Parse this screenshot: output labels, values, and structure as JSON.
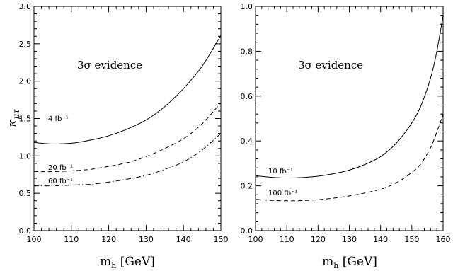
{
  "chart_data": [
    {
      "type": "line",
      "xlabel": "m",
      "xlabel_sub": "h",
      "xlabel_unit": "[GeV]",
      "ylabel": "κ",
      "ylabel_sub": "μτ",
      "xlim": [
        100,
        150
      ],
      "ylim": [
        0,
        3
      ],
      "xticks": [
        100,
        110,
        120,
        130,
        140,
        150
      ],
      "yticks": [
        0.0,
        0.5,
        1.0,
        1.5,
        2.0,
        2.5,
        3.0
      ],
      "ytick_labels": [
        "0.0",
        "0.5",
        "1.0",
        "1.5",
        "2.0",
        "2.5",
        "3.0"
      ],
      "annotation": "3σ evidence",
      "series": [
        {
          "name": "4 fb⁻¹",
          "style": "solid",
          "x": [
            100,
            105,
            110,
            115,
            120,
            125,
            130,
            135,
            140,
            145,
            150
          ],
          "y": [
            1.18,
            1.16,
            1.17,
            1.21,
            1.27,
            1.36,
            1.48,
            1.66,
            1.9,
            2.2,
            2.61
          ]
        },
        {
          "name": "20 fb⁻¹",
          "style": "dashed",
          "x": [
            100,
            105,
            110,
            115,
            120,
            125,
            130,
            135,
            140,
            145,
            150
          ],
          "y": [
            0.79,
            0.79,
            0.8,
            0.82,
            0.86,
            0.91,
            0.99,
            1.1,
            1.23,
            1.43,
            1.71
          ]
        },
        {
          "name": "60 fb⁻¹",
          "style": "dashdot",
          "x": [
            100,
            105,
            110,
            115,
            120,
            125,
            130,
            135,
            140,
            145,
            150
          ],
          "y": [
            0.6,
            0.6,
            0.61,
            0.62,
            0.65,
            0.69,
            0.74,
            0.82,
            0.92,
            1.08,
            1.3
          ]
        }
      ]
    },
    {
      "type": "line",
      "xlabel": "m",
      "xlabel_sub": "h",
      "xlabel_unit": "[GeV]",
      "xlim": [
        100,
        160
      ],
      "ylim": [
        0,
        1
      ],
      "xticks": [
        100,
        110,
        120,
        130,
        140,
        150,
        160
      ],
      "yticks": [
        0.0,
        0.2,
        0.4,
        0.6,
        0.8,
        1.0
      ],
      "ytick_labels": [
        "0.0",
        "0.2",
        "0.4",
        "0.6",
        "0.8",
        "1.0"
      ],
      "annotation": "3σ evidence",
      "series": [
        {
          "name": "10 fb⁻¹",
          "style": "solid",
          "x": [
            100,
            105,
            110,
            115,
            120,
            125,
            130,
            135,
            140,
            145,
            150,
            153,
            156,
            158,
            160
          ],
          "y": [
            0.245,
            0.238,
            0.235,
            0.237,
            0.243,
            0.254,
            0.27,
            0.295,
            0.33,
            0.39,
            0.48,
            0.56,
            0.68,
            0.8,
            0.96
          ]
        },
        {
          "name": "100 fb⁻¹",
          "style": "dashed",
          "x": [
            100,
            105,
            110,
            115,
            120,
            125,
            130,
            135,
            140,
            145,
            150,
            153,
            156,
            158,
            160
          ],
          "y": [
            0.14,
            0.135,
            0.133,
            0.134,
            0.138,
            0.145,
            0.155,
            0.168,
            0.185,
            0.213,
            0.26,
            0.3,
            0.37,
            0.44,
            0.52
          ]
        }
      ]
    }
  ]
}
